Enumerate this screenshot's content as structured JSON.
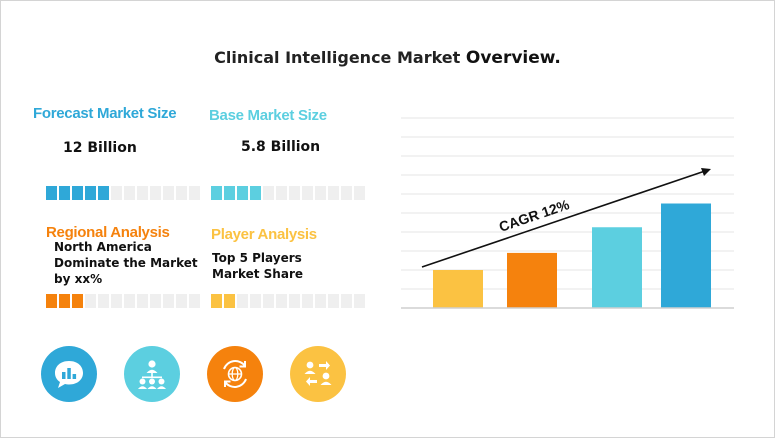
{
  "title": {
    "main": "Clinical Intelligence Market ",
    "emphasis": "Overview."
  },
  "forecast": {
    "heading": "Forecast Market Size",
    "value": "12 Billion",
    "level": 5,
    "segments": 12,
    "color": "#2fa8d8"
  },
  "base": {
    "heading": "Base Market Size",
    "value": "5.8 Billion",
    "level": 4,
    "segments": 12,
    "color": "#5ccfe0"
  },
  "regional": {
    "heading": "Regional Analysis",
    "line1": "North America",
    "line2": "Dominate the Market",
    "line3": "by xx%",
    "level": 3,
    "segments": 12,
    "color": "#f5820d"
  },
  "player": {
    "heading": "Player Analysis",
    "line1": "Top 5 Players",
    "line2": "Market Share",
    "level": 2,
    "segments": 12,
    "color": "#fbc242"
  },
  "icons": [
    {
      "name": "chat-chart-icon",
      "color": "#2fa8d8"
    },
    {
      "name": "team-network-icon",
      "color": "#5ccfe0"
    },
    {
      "name": "globe-cycle-icon",
      "color": "#f5820d"
    },
    {
      "name": "people-exchange-icon",
      "color": "#fbc242"
    }
  ],
  "chart_data": {
    "type": "bar",
    "categories": [
      "",
      "",
      "",
      ""
    ],
    "values": [
      40,
      58,
      85,
      110
    ],
    "colors": [
      "#fbc242",
      "#f5820d",
      "#5ccfe0",
      "#2fa8d8"
    ],
    "ylim": [
      0,
      200
    ],
    "grid": true,
    "annotation": "CAGR 12%"
  }
}
